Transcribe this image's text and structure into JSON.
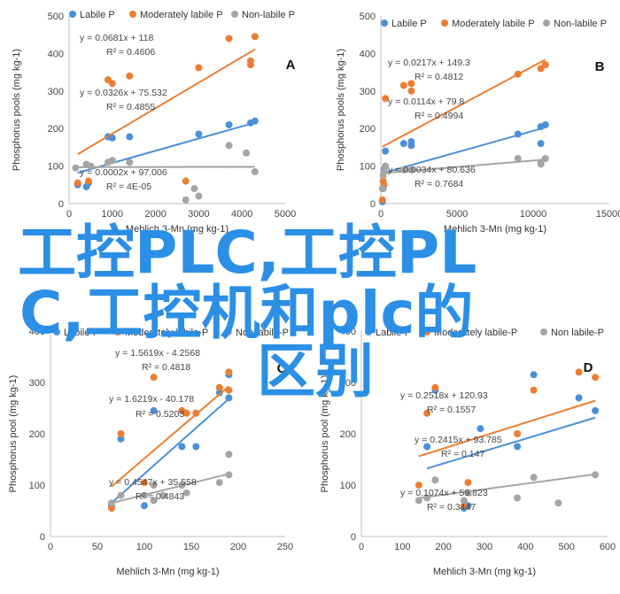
{
  "colors": {
    "labile": "#4a90d9",
    "moderate": "#ed7d31",
    "nonlabile": "#a5a5a5",
    "watermark": "#2b8fe6"
  },
  "legend": [
    "Labile P",
    "Moderately labile P",
    "Non-labile P"
  ],
  "legend_cd": [
    "Labile-P",
    "Moderately labile-P",
    "Non labile-P"
  ],
  "watermark": {
    "line1": "工控PLC,工控PL",
    "line2": "C,工控机和plc的",
    "line3": "区别"
  },
  "chart_data": [
    {
      "type": "scatter",
      "panel": "A",
      "xlabel": "Mehlich 3-Mn (mg kg-1)",
      "ylabel": "Phosphorus pools (mg kg-1)",
      "xlim": [
        0,
        5000
      ],
      "ylim": [
        0,
        500
      ],
      "xticks": [
        "0",
        "1000",
        "2000",
        "3000",
        "4000",
        "5000"
      ],
      "yticks": [
        "0",
        "100",
        "200",
        "300",
        "400",
        "500"
      ],
      "series": [
        {
          "name": "Labile P",
          "points": [
            [
              200,
              50
            ],
            [
              400,
              45
            ],
            [
              450,
              55
            ],
            [
              900,
              178
            ],
            [
              1000,
              175
            ],
            [
              1400,
              178
            ],
            [
              3000,
              185
            ],
            [
              3700,
              210
            ],
            [
              4200,
              215
            ],
            [
              4300,
              220
            ]
          ],
          "fit": [
            0.0326,
            75.532
          ],
          "eq": "y = 0.0326x + 75.532",
          "r2": "R² = 0.4855"
        },
        {
          "name": "Moderately labile P",
          "points": [
            [
              200,
              55
            ],
            [
              450,
              60
            ],
            [
              900,
              330
            ],
            [
              1000,
              320
            ],
            [
              1400,
              340
            ],
            [
              2700,
              60
            ],
            [
              3000,
              362
            ],
            [
              3700,
              440
            ],
            [
              4200,
              370
            ],
            [
              4200,
              380
            ],
            [
              4300,
              445
            ]
          ],
          "fit": [
            0.0681,
            118
          ],
          "eq": "y = 0.0681x + 118",
          "r2": "R² = 0.4606"
        },
        {
          "name": "Non-labile P",
          "points": [
            [
              150,
              95
            ],
            [
              400,
              105
            ],
            [
              500,
              100
            ],
            [
              900,
              110
            ],
            [
              1000,
              115
            ],
            [
              1400,
              110
            ],
            [
              2700,
              10
            ],
            [
              2900,
              40
            ],
            [
              3000,
              20
            ],
            [
              3700,
              155
            ],
            [
              4100,
              135
            ],
            [
              4300,
              85
            ]
          ],
          "fit": [
            0.0002,
            97.006
          ],
          "eq": "y = 0.0002x + 97.006",
          "r2": "R² = 4E-05"
        }
      ]
    },
    {
      "type": "scatter",
      "panel": "B",
      "xlabel": "Mehlich 3-Mn (mg kg-1)",
      "ylabel": "Phosphorus pools (mg kg-1)",
      "xlim": [
        0,
        15000
      ],
      "ylim": [
        0,
        500
      ],
      "xticks": [
        "0",
        "5000",
        "10000",
        "15000"
      ],
      "yticks": [
        "0",
        "100",
        "200",
        "300",
        "400",
        "500"
      ],
      "series": [
        {
          "name": "Labile P",
          "points": [
            [
              100,
              5
            ],
            [
              150,
              40
            ],
            [
              200,
              90
            ],
            [
              300,
              140
            ],
            [
              1500,
              160
            ],
            [
              2000,
              165
            ],
            [
              2000,
              155
            ],
            [
              9000,
              185
            ],
            [
              10500,
              160
            ],
            [
              10500,
              205
            ],
            [
              10800,
              210
            ]
          ],
          "fit": [
            0.0114,
            79.8
          ],
          "eq": "y = 0.0114x + 79.8",
          "r2": "R² = 0.4994"
        },
        {
          "name": "Moderately labile P",
          "points": [
            [
              100,
              10
            ],
            [
              150,
              60
            ],
            [
              200,
              50
            ],
            [
              300,
              280
            ],
            [
              1500,
              315
            ],
            [
              2000,
              300
            ],
            [
              2000,
              320
            ],
            [
              9000,
              345
            ],
            [
              10500,
              360
            ],
            [
              10800,
              370
            ]
          ],
          "fit": [
            0.0217,
            149.3
          ],
          "eq": "y = 0.0217x + 149.3",
          "r2": "R² = 0.4812"
        },
        {
          "name": "Non-labile P",
          "points": [
            [
              100,
              40
            ],
            [
              150,
              75
            ],
            [
              200,
              85
            ],
            [
              300,
              100
            ],
            [
              1500,
              90
            ],
            [
              2000,
              90
            ],
            [
              9000,
              120
            ],
            [
              10500,
              110
            ],
            [
              10500,
              105
            ],
            [
              10800,
              120
            ]
          ],
          "fit": [
            0.0034,
            80.636
          ],
          "eq": "y = 0.0034x + 80.636",
          "r2": "R² = 0.7684"
        }
      ]
    },
    {
      "type": "scatter",
      "panel": "C",
      "xlabel": "Mehlich 3-Mn (mg kg-1)",
      "ylabel": "Phosphorus pool (mg kg-1)",
      "xlim": [
        0,
        250
      ],
      "ylim": [
        0,
        400
      ],
      "xticks": [
        "0",
        "50",
        "100",
        "150",
        "200",
        "250"
      ],
      "yticks": [
        "0",
        "100",
        "200",
        "300",
        "400"
      ],
      "series": [
        {
          "name": "Labile-P",
          "points": [
            [
              65,
              60
            ],
            [
              75,
              190
            ],
            [
              100,
              60
            ],
            [
              110,
              245
            ],
            [
              140,
              175
            ],
            [
              155,
              175
            ],
            [
              180,
              280
            ],
            [
              190,
              270
            ],
            [
              190,
              315
            ]
          ],
          "fit": [
            1.6219,
            -40.178
          ],
          "eq": "y = 1.6219x - 40.178",
          "r2": "R² = 0.5203"
        },
        {
          "name": "Moderately labile-P",
          "points": [
            [
              65,
              55
            ],
            [
              75,
              200
            ],
            [
              100,
              105
            ],
            [
              110,
              310
            ],
            [
              140,
              245
            ],
            [
              145,
              240
            ],
            [
              155,
              240
            ],
            [
              180,
              290
            ],
            [
              190,
              285
            ],
            [
              190,
              320
            ]
          ],
          "fit": [
            1.5619,
            -4.2568
          ],
          "eq": "y = 1.5619x - 4.2568",
          "r2": "R² = 0.4818"
        },
        {
          "name": "Non labile-P",
          "points": [
            [
              65,
              65
            ],
            [
              75,
              80
            ],
            [
              100,
              80
            ],
            [
              110,
              70
            ],
            [
              110,
              100
            ],
            [
              120,
              80
            ],
            [
              140,
              100
            ],
            [
              145,
              85
            ],
            [
              180,
              105
            ],
            [
              190,
              120
            ],
            [
              190,
              160
            ]
          ],
          "fit": [
            0.4547,
            35.558
          ],
          "eq": "y = 0.4547x + 35.558",
          "r2": "R² = 0.4843"
        }
      ]
    },
    {
      "type": "scatter",
      "panel": "D",
      "xlabel": "Mehlich 3-Mn (mg kg-1)",
      "ylabel": "Phosphorus pool (mg kg-1)",
      "xlim": [
        0,
        600
      ],
      "ylim": [
        0,
        400
      ],
      "xticks": [
        "0",
        "100",
        "200",
        "300",
        "400",
        "500",
        "600"
      ],
      "yticks": [
        "0",
        "100",
        "200",
        "300",
        "400"
      ],
      "series": [
        {
          "name": "Labile-P",
          "points": [
            [
              160,
              175
            ],
            [
              180,
              285
            ],
            [
              250,
              55
            ],
            [
              260,
              60
            ],
            [
              290,
              210
            ],
            [
              380,
              175
            ],
            [
              420,
              315
            ],
            [
              530,
              270
            ],
            [
              570,
              245
            ]
          ],
          "fit": [
            0.2415,
            93.785
          ],
          "eq": "y = 0.2415x + 93.785",
          "r2": "R² = 0.147"
        },
        {
          "name": "Moderately labile-P",
          "points": [
            [
              140,
              100
            ],
            [
              160,
              240
            ],
            [
              180,
              290
            ],
            [
              250,
              60
            ],
            [
              260,
              105
            ],
            [
              380,
              200
            ],
            [
              420,
              285
            ],
            [
              530,
              320
            ],
            [
              570,
              310
            ]
          ],
          "fit": [
            0.2518,
            120.93
          ],
          "eq": "y = 0.2518x + 120.93",
          "r2": "R² = 0.1557"
        },
        {
          "name": "Non labile-P",
          "points": [
            [
              140,
              70
            ],
            [
              160,
              75
            ],
            [
              180,
              110
            ],
            [
              250,
              70
            ],
            [
              260,
              85
            ],
            [
              380,
              75
            ],
            [
              420,
              115
            ],
            [
              480,
              65
            ],
            [
              570,
              120
            ]
          ],
          "fit": [
            0.1074,
            59.823
          ],
          "eq": "y = 0.1074x + 59.823",
          "r2": "R² = 0.3447"
        }
      ]
    }
  ]
}
